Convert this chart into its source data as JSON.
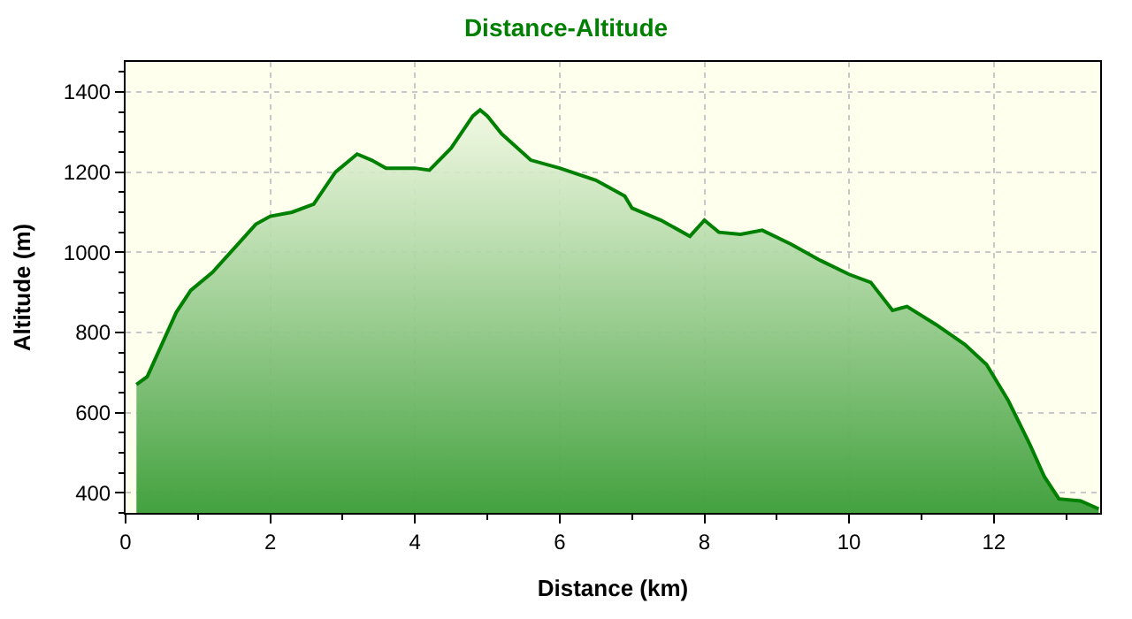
{
  "chart_data": {
    "type": "area",
    "title": "Distance-Altitude",
    "xlabel": "Distance (km)",
    "ylabel": "Altitude (m)",
    "xlim": [
      0,
      13.47
    ],
    "ylim": [
      350,
      1475
    ],
    "xticks": [
      0,
      2,
      4,
      6,
      8,
      10,
      12
    ],
    "yticks": [
      400,
      600,
      800,
      1000,
      1200,
      1400
    ],
    "grid": true,
    "series": [
      {
        "color": "#008000",
        "x": [
          0.15,
          0.3,
          0.5,
          0.7,
          0.9,
          1.2,
          1.5,
          1.8,
          2.0,
          2.3,
          2.6,
          2.9,
          3.2,
          3.4,
          3.6,
          4.0,
          4.2,
          4.5,
          4.8,
          4.9,
          5.0,
          5.2,
          5.6,
          6.0,
          6.5,
          6.9,
          7.0,
          7.4,
          7.8,
          8.0,
          8.2,
          8.5,
          8.8,
          9.2,
          9.6,
          10.0,
          10.3,
          10.6,
          10.8,
          11.2,
          11.6,
          11.9,
          12.2,
          12.5,
          12.7,
          12.9,
          13.2,
          13.45
        ],
        "values": [
          670,
          690,
          770,
          850,
          905,
          950,
          1010,
          1070,
          1090,
          1100,
          1120,
          1200,
          1245,
          1230,
          1210,
          1210,
          1205,
          1260,
          1340,
          1355,
          1340,
          1295,
          1230,
          1210,
          1180,
          1140,
          1110,
          1080,
          1040,
          1080,
          1050,
          1045,
          1055,
          1020,
          980,
          945,
          925,
          855,
          865,
          820,
          770,
          720,
          630,
          520,
          440,
          385,
          380,
          360
        ]
      }
    ]
  }
}
